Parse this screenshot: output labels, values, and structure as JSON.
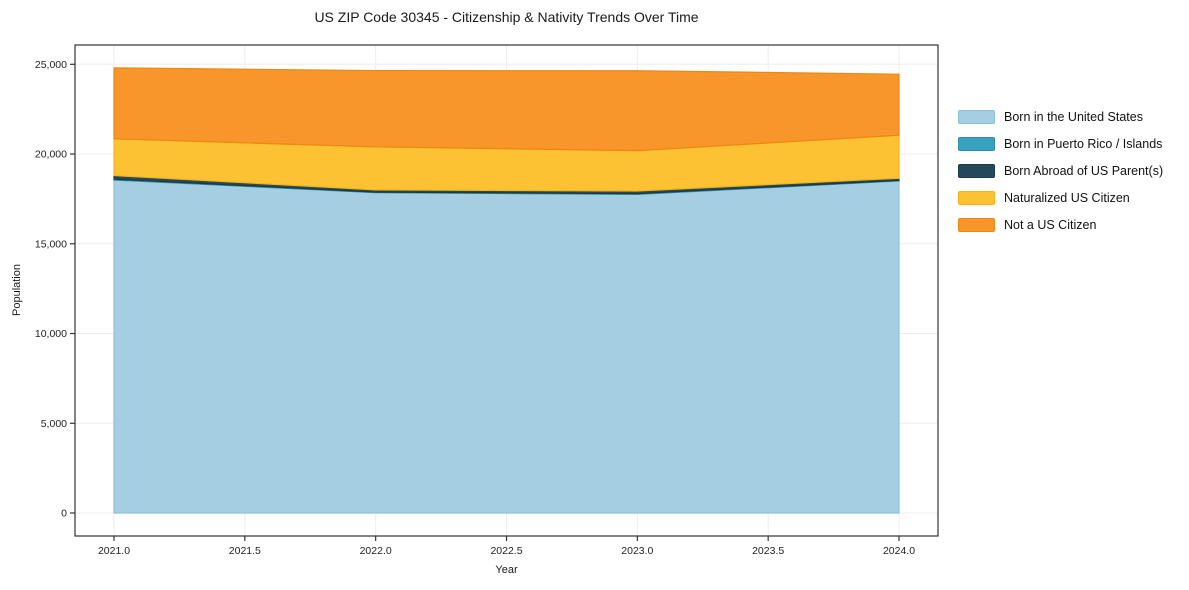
{
  "chart_data": {
    "type": "area",
    "stacked": true,
    "title": "US ZIP Code 30345 - Citizenship & Nativity Trends Over Time",
    "xlabel": "Year",
    "ylabel": "Population",
    "x": [
      2021,
      2022,
      2023,
      2024
    ],
    "series": [
      {
        "name": "Born in the United States",
        "color": "#a5cee3",
        "edge": "#8fc0d9",
        "values": [
          18550,
          17850,
          17750,
          18500
        ]
      },
      {
        "name": "Born in Puerto Rico / Islands",
        "color": "#3aa2bf",
        "edge": "#2f8fa9",
        "values": [
          50,
          30,
          40,
          30
        ]
      },
      {
        "name": "Born Abroad of US Parent(s)",
        "color": "#25485a",
        "edge": "#1c3947",
        "values": [
          200,
          120,
          150,
          120
        ]
      },
      {
        "name": "Naturalized US Citizen",
        "color": "#fdc233",
        "edge": "#f3b414",
        "values": [
          2050,
          2400,
          2250,
          2400
        ]
      },
      {
        "name": "Not a US Citizen",
        "color": "#f8952b",
        "edge": "#ee8713",
        "values": [
          3950,
          4250,
          4450,
          3400
        ]
      }
    ],
    "totals": [
      24800,
      24650,
      24640,
      24450
    ],
    "xtick_values": [
      2021.0,
      2021.5,
      2022.0,
      2022.5,
      2023.0,
      2023.5,
      2024.0
    ],
    "xtick_labels": [
      "2021.0",
      "2021.5",
      "2022.0",
      "2022.5",
      "2023.0",
      "2023.5",
      "2024.0"
    ],
    "ytick_values": [
      0,
      5000,
      10000,
      15000,
      20000,
      25000
    ],
    "ytick_labels": [
      "0",
      "5,000",
      "10,000",
      "15,000",
      "20,000",
      "25,000"
    ],
    "ylim": [
      0,
      25000
    ],
    "grid": true,
    "legend_position": "right",
    "background": "#ffffff",
    "grid_color": "#ededed",
    "frame_color": "#333333",
    "text_color": "#1a1a1a"
  }
}
